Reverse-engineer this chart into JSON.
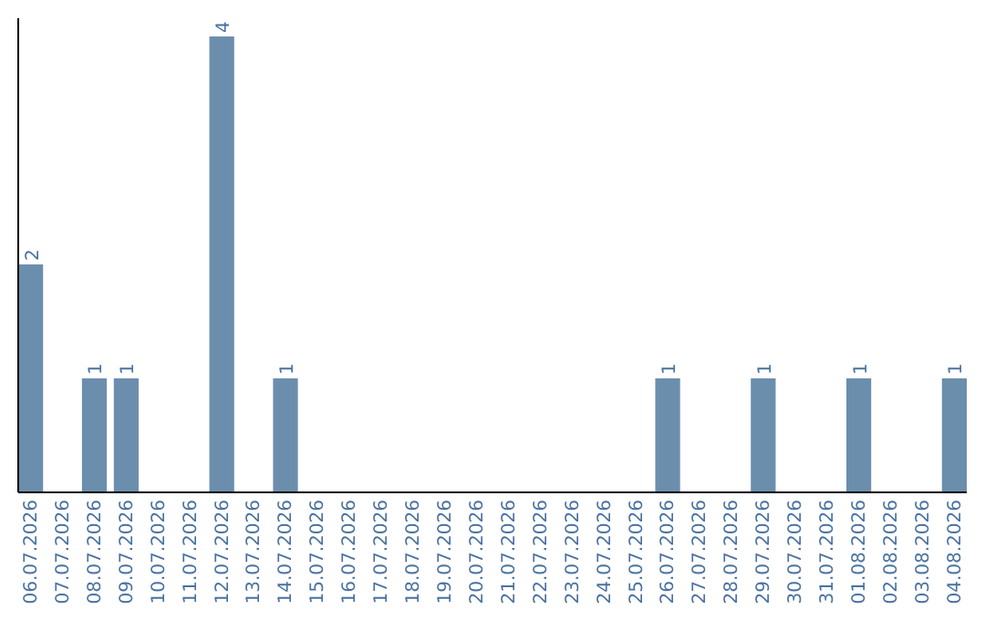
{
  "chart_data": {
    "type": "bar",
    "categories": [
      "06.07.2026",
      "07.07.2026",
      "08.07.2026",
      "09.07.2026",
      "10.07.2026",
      "11.07.2026",
      "12.07.2026",
      "13.07.2026",
      "14.07.2026",
      "15.07.2026",
      "16.07.2026",
      "17.07.2026",
      "18.07.2026",
      "19.07.2026",
      "20.07.2026",
      "21.07.2026",
      "22.07.2026",
      "23.07.2026",
      "24.07.2026",
      "25.07.2026",
      "26.07.2026",
      "27.07.2026",
      "28.07.2026",
      "29.07.2026",
      "30.07.2026",
      "31.07.2026",
      "01.08.2026",
      "02.08.2026",
      "03.08.2026",
      "04.08.2026"
    ],
    "values": [
      2,
      0,
      1,
      1,
      0,
      0,
      4,
      0,
      1,
      0,
      0,
      0,
      0,
      0,
      0,
      0,
      0,
      0,
      0,
      0,
      1,
      0,
      0,
      1,
      0,
      0,
      1,
      0,
      0,
      1
    ],
    "value_labels": [
      "2",
      null,
      "1",
      "1",
      null,
      null,
      "4",
      null,
      "1",
      null,
      null,
      null,
      null,
      null,
      null,
      null,
      null,
      null,
      null,
      null,
      "1",
      null,
      null,
      "1",
      null,
      null,
      "1",
      null,
      null,
      "1"
    ],
    "color": "#6c8ead",
    "grid": false
  }
}
